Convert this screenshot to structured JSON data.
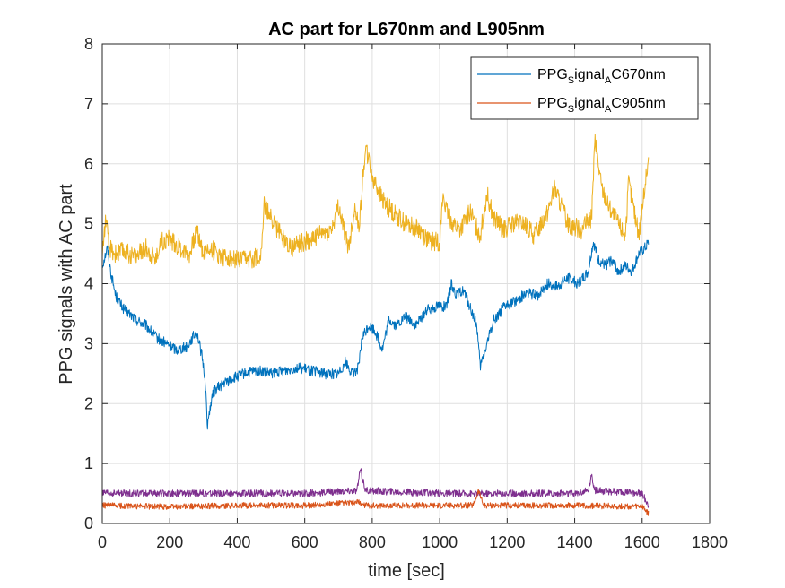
{
  "chart_data": {
    "type": "line",
    "title": "AC part for L670nm and L905nm",
    "xlabel": "time [sec]",
    "ylabel": "PPG signals with AC part",
    "xlim": [
      0,
      1800
    ],
    "ylim": [
      0,
      8
    ],
    "xticks": [
      "0",
      "200",
      "400",
      "600",
      "800",
      "1000",
      "1200",
      "1400",
      "1600",
      "1800"
    ],
    "yticks": [
      "0",
      "1",
      "2",
      "3",
      "4",
      "5",
      "6",
      "7",
      "8"
    ],
    "grid": true,
    "legend_position": "top-right",
    "legend": [
      {
        "base": "PPG",
        "sub1": "S",
        "mid": "ignal",
        "sub2": "A",
        "tail": "C670nm",
        "color": "#0072BD"
      },
      {
        "base": "PPG",
        "sub1": "S",
        "mid": "ignal",
        "sub2": "A",
        "tail": "C905nm",
        "color": "#D95319"
      }
    ],
    "series": [
      {
        "name": "PPGSignalAC670nm",
        "color": "#0072BD",
        "x": [
          0,
          15,
          25,
          40,
          60,
          80,
          100,
          130,
          160,
          190,
          220,
          250,
          280,
          295,
          305,
          312,
          318,
          330,
          350,
          380,
          420,
          460,
          500,
          540,
          580,
          620,
          660,
          700,
          720,
          740,
          760,
          770,
          790,
          810,
          830,
          850,
          870,
          900,
          930,
          960,
          1000,
          1020,
          1035,
          1050,
          1070,
          1090,
          1110,
          1120,
          1140,
          1160,
          1190,
          1220,
          1260,
          1290,
          1320,
          1350,
          1380,
          1410,
          1440,
          1455,
          1470,
          1490,
          1510,
          1530,
          1550,
          1570,
          1590,
          1610,
          1620
        ],
        "y": [
          4.3,
          4.6,
          4.2,
          3.8,
          3.6,
          3.5,
          3.4,
          3.3,
          3.1,
          3.0,
          2.9,
          2.95,
          3.2,
          2.8,
          2.4,
          1.6,
          1.9,
          2.2,
          2.3,
          2.4,
          2.5,
          2.55,
          2.5,
          2.55,
          2.6,
          2.55,
          2.5,
          2.5,
          2.7,
          2.5,
          2.6,
          3.1,
          3.3,
          3.2,
          2.9,
          3.4,
          3.3,
          3.45,
          3.3,
          3.55,
          3.65,
          3.6,
          4.0,
          3.8,
          3.9,
          3.6,
          3.3,
          2.6,
          3.0,
          3.4,
          3.6,
          3.7,
          3.85,
          3.8,
          4.0,
          3.95,
          4.1,
          4.0,
          4.2,
          4.7,
          4.4,
          4.3,
          4.4,
          4.2,
          4.3,
          4.2,
          4.5,
          4.6,
          4.7
        ],
        "noise": 0.09
      },
      {
        "name": "PPGSignalAC905nm",
        "color": "#D95319",
        "x": [
          0,
          200,
          400,
          600,
          760,
          780,
          800,
          1000,
          1100,
          1115,
          1130,
          1200,
          1400,
          1600,
          1620
        ],
        "y": [
          0.3,
          0.28,
          0.3,
          0.3,
          0.35,
          0.3,
          0.3,
          0.3,
          0.3,
          0.55,
          0.3,
          0.3,
          0.3,
          0.28,
          0.15
        ],
        "noise": 0.05
      },
      {
        "name": "",
        "color": "#EDB120",
        "x": [
          0,
          10,
          20,
          40,
          60,
          80,
          100,
          130,
          160,
          170,
          200,
          230,
          260,
          280,
          300,
          320,
          340,
          360,
          400,
          440,
          470,
          480,
          520,
          560,
          600,
          640,
          680,
          700,
          720,
          730,
          750,
          760,
          780,
          800,
          830,
          860,
          900,
          940,
          970,
          1000,
          1010,
          1020,
          1040,
          1060,
          1090,
          1120,
          1140,
          1160,
          1190,
          1220,
          1250,
          1280,
          1320,
          1340,
          1380,
          1420,
          1450,
          1460,
          1480,
          1500,
          1520,
          1550,
          1560,
          1590,
          1610,
          1620
        ],
        "y": [
          4.5,
          5.1,
          4.6,
          4.5,
          4.55,
          4.5,
          4.45,
          4.6,
          4.4,
          4.7,
          4.75,
          4.6,
          4.5,
          4.9,
          4.5,
          4.6,
          4.5,
          4.45,
          4.4,
          4.4,
          4.5,
          5.3,
          4.9,
          4.6,
          4.7,
          4.8,
          4.9,
          5.3,
          4.8,
          4.6,
          5.3,
          4.9,
          6.3,
          5.8,
          5.4,
          5.2,
          5.0,
          4.9,
          4.7,
          4.7,
          5.5,
          5.2,
          5.0,
          4.9,
          5.2,
          4.8,
          5.5,
          5.1,
          4.9,
          5.0,
          5.0,
          4.8,
          5.2,
          5.6,
          5.0,
          4.9,
          5.1,
          6.4,
          5.6,
          5.3,
          5.1,
          4.8,
          5.7,
          4.8,
          5.7,
          6.1
        ],
        "noise": 0.16
      },
      {
        "name": "",
        "color": "#7E2F8E",
        "x": [
          0,
          200,
          400,
          600,
          755,
          765,
          780,
          1000,
          1400,
          1440,
          1450,
          1460,
          1600,
          1620
        ],
        "y": [
          0.5,
          0.5,
          0.5,
          0.5,
          0.55,
          0.9,
          0.55,
          0.5,
          0.5,
          0.55,
          0.8,
          0.55,
          0.5,
          0.3
        ],
        "noise": 0.06
      }
    ]
  }
}
